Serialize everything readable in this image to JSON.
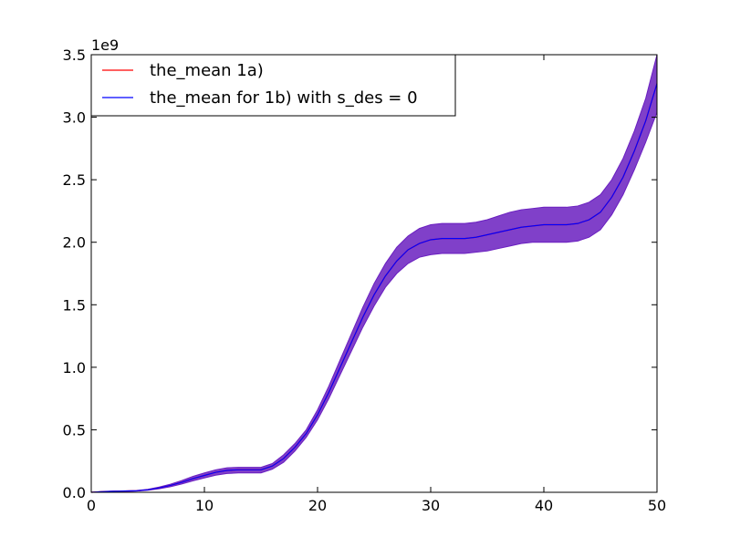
{
  "chart_data": {
    "type": "line",
    "title": "",
    "xlabel": "",
    "ylabel": "",
    "offset_text": "1e9",
    "y_scale_factor": 1000000000,
    "xlim": [
      0,
      50
    ],
    "ylim": [
      0,
      3.5
    ],
    "xticks": [
      0,
      10,
      20,
      30,
      40,
      50
    ],
    "xtick_labels": [
      "0",
      "10",
      "20",
      "30",
      "40",
      "50"
    ],
    "yticks": [
      0,
      0.5,
      1.0,
      1.5,
      2.0,
      2.5,
      3.0,
      3.5
    ],
    "ytick_labels": [
      "0.0",
      "0.5",
      "1.0",
      "1.5",
      "2.0",
      "2.5",
      "3.0",
      "3.5"
    ],
    "grid": false,
    "legend_position": "top-left",
    "x": [
      0,
      1,
      2,
      3,
      4,
      5,
      6,
      7,
      8,
      9,
      10,
      11,
      12,
      13,
      14,
      15,
      16,
      17,
      18,
      19,
      20,
      21,
      22,
      23,
      24,
      25,
      26,
      27,
      28,
      29,
      30,
      31,
      32,
      33,
      34,
      35,
      36,
      37,
      38,
      39,
      40,
      41,
      42,
      43,
      44,
      45,
      46,
      47,
      48,
      49,
      50
    ],
    "series": [
      {
        "name": "the_mean 1a)",
        "color": "#ff0000",
        "values": [
          0.0,
          0.005,
          0.008,
          0.01,
          0.012,
          0.02,
          0.035,
          0.055,
          0.08,
          0.11,
          0.135,
          0.16,
          0.175,
          0.18,
          0.18,
          0.18,
          0.21,
          0.27,
          0.36,
          0.47,
          0.62,
          0.8,
          1.0,
          1.2,
          1.4,
          1.58,
          1.73,
          1.85,
          1.94,
          1.99,
          2.02,
          2.03,
          2.03,
          2.03,
          2.04,
          2.06,
          2.08,
          2.1,
          2.12,
          2.13,
          2.14,
          2.14,
          2.14,
          2.15,
          2.18,
          2.24,
          2.36,
          2.52,
          2.73,
          2.97,
          3.27
        ]
      },
      {
        "name": "the_mean for 1b) with s_des = 0",
        "color": "#0000ff",
        "values": [
          0.0,
          0.005,
          0.008,
          0.01,
          0.012,
          0.02,
          0.035,
          0.055,
          0.08,
          0.11,
          0.135,
          0.16,
          0.175,
          0.18,
          0.18,
          0.18,
          0.21,
          0.27,
          0.36,
          0.47,
          0.62,
          0.8,
          1.0,
          1.2,
          1.4,
          1.58,
          1.73,
          1.85,
          1.94,
          1.99,
          2.02,
          2.03,
          2.03,
          2.03,
          2.04,
          2.06,
          2.08,
          2.1,
          2.12,
          2.13,
          2.14,
          2.14,
          2.14,
          2.15,
          2.18,
          2.24,
          2.36,
          2.52,
          2.73,
          2.97,
          3.27
        ]
      }
    ],
    "band": {
      "color": "#6a1fc0",
      "lower": [
        0.0,
        0.003,
        0.006,
        0.008,
        0.01,
        0.016,
        0.028,
        0.045,
        0.066,
        0.092,
        0.115,
        0.137,
        0.15,
        0.155,
        0.155,
        0.155,
        0.185,
        0.24,
        0.33,
        0.44,
        0.58,
        0.75,
        0.94,
        1.13,
        1.32,
        1.49,
        1.64,
        1.75,
        1.83,
        1.88,
        1.9,
        1.91,
        1.91,
        1.91,
        1.92,
        1.93,
        1.95,
        1.97,
        1.99,
        2.0,
        2.0,
        2.0,
        2.0,
        2.01,
        2.04,
        2.1,
        2.22,
        2.38,
        2.58,
        2.8,
        3.04
      ],
      "upper": [
        0.0,
        0.007,
        0.01,
        0.012,
        0.015,
        0.024,
        0.042,
        0.065,
        0.094,
        0.128,
        0.155,
        0.18,
        0.196,
        0.2,
        0.2,
        0.2,
        0.23,
        0.3,
        0.39,
        0.5,
        0.66,
        0.85,
        1.06,
        1.27,
        1.48,
        1.67,
        1.83,
        1.96,
        2.05,
        2.11,
        2.14,
        2.15,
        2.15,
        2.15,
        2.16,
        2.18,
        2.21,
        2.24,
        2.26,
        2.27,
        2.28,
        2.28,
        2.28,
        2.29,
        2.32,
        2.38,
        2.5,
        2.67,
        2.89,
        3.15,
        3.5
      ]
    }
  }
}
